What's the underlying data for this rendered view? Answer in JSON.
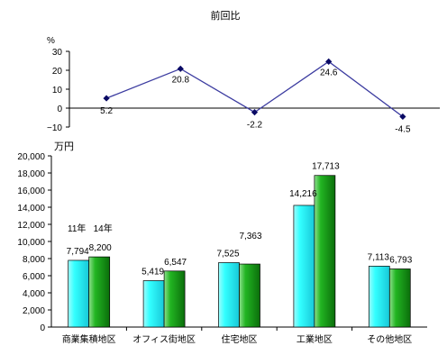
{
  "chart_data": [
    {
      "type": "line",
      "title": "前回比",
      "ylabel": "%",
      "ylim": [
        -10,
        30
      ],
      "yticks": [
        "30",
        "20",
        "10",
        "0",
        "−10"
      ],
      "categories": [
        "商業集積地区",
        "オフィス街地区",
        "住宅地区",
        "工業地区",
        "その他地区"
      ],
      "values": [
        5.2,
        20.8,
        -2.2,
        24.6,
        -4.5
      ],
      "value_labels": [
        "5.2",
        "20.8",
        "-2.2",
        "24.6",
        "-4.5"
      ],
      "grid": false,
      "colors": {
        "line": "#3c3ca0",
        "marker": "#0a0a64"
      }
    },
    {
      "type": "bar",
      "ylabel": "万円",
      "ylim": [
        0,
        20000
      ],
      "yticks": [
        "20,000",
        "18,000",
        "16,000",
        "14,000",
        "12,000",
        "10,000",
        "8,000",
        "6,000",
        "4,000",
        "2,000",
        "0"
      ],
      "categories": [
        "商業集積地区",
        "オフィス街地区",
        "住宅地区",
        "工業地区",
        "その他地区"
      ],
      "series": [
        {
          "name": "11年",
          "values": [
            7794,
            5419,
            7525,
            14216,
            7113
          ],
          "labels": [
            "7,794",
            "5,419",
            "7,525",
            "14,216",
            "7,113"
          ],
          "color": "#33ffff"
        },
        {
          "name": "14年",
          "values": [
            8200,
            6547,
            7363,
            17713,
            6793
          ],
          "labels": [
            "8,200",
            "6,547",
            "7,363",
            "17,713",
            "6,793"
          ],
          "color": "#1ea81e"
        }
      ],
      "grid": false
    }
  ]
}
